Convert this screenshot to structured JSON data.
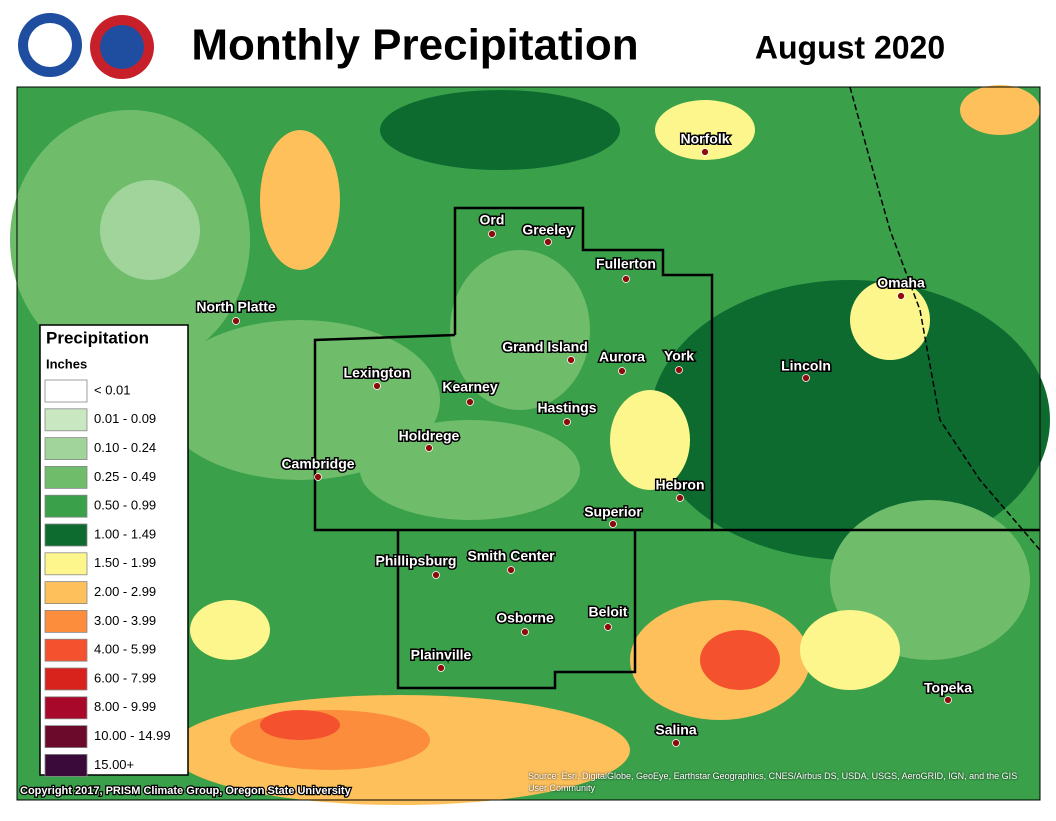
{
  "header": {
    "title": "Monthly Precipitation",
    "date": "August 2020"
  },
  "legend": {
    "title": "Precipitation",
    "unit": "Inches",
    "items": [
      {
        "label": "< 0.01",
        "color": "#ffffff"
      },
      {
        "label": "0.01 - 0.09",
        "color": "#c9e8c2"
      },
      {
        "label": "0.10 - 0.24",
        "color": "#a0d49a"
      },
      {
        "label": "0.25 - 0.49",
        "color": "#6fbd6b"
      },
      {
        "label": "0.50 - 0.99",
        "color": "#3aa04a"
      },
      {
        "label": "1.00 - 1.49",
        "color": "#0d6b30"
      },
      {
        "label": "1.50 - 1.99",
        "color": "#fdf68c"
      },
      {
        "label": "2.00 - 2.99",
        "color": "#fdc05a"
      },
      {
        "label": "3.00 - 3.99",
        "color": "#fb8d3c"
      },
      {
        "label": "4.00 - 5.99",
        "color": "#f4522e"
      },
      {
        "label": "6.00 - 7.99",
        "color": "#d8221c"
      },
      {
        "label": "8.00 - 9.99",
        "color": "#a8082a"
      },
      {
        "label": "10.00 - 14.99",
        "color": "#6b0a2a"
      },
      {
        "label": "15.00+",
        "color": "#3a0a3a"
      }
    ]
  },
  "cities": [
    {
      "name": "Norfolk"
    },
    {
      "name": "Ord"
    },
    {
      "name": "Greeley"
    },
    {
      "name": "Fullerton"
    },
    {
      "name": "Omaha"
    },
    {
      "name": "North Platte"
    },
    {
      "name": "Grand Island"
    },
    {
      "name": "Aurora"
    },
    {
      "name": "York"
    },
    {
      "name": "Lincoln"
    },
    {
      "name": "Lexington"
    },
    {
      "name": "Kearney"
    },
    {
      "name": "Hastings"
    },
    {
      "name": "Holdrege"
    },
    {
      "name": "Cambridge"
    },
    {
      "name": "Hebron"
    },
    {
      "name": "Superior"
    },
    {
      "name": "Phillipsburg"
    },
    {
      "name": "Smith Center"
    },
    {
      "name": "Osborne"
    },
    {
      "name": "Beloit"
    },
    {
      "name": "Plainville"
    },
    {
      "name": "Topeka"
    },
    {
      "name": "Salina"
    }
  ],
  "credits": {
    "copyright": "Copyright 2017, PRISM Climate Group, Oregon State University",
    "source": "Source: Esri, DigitalGlobe, GeoEye, Earthstar Geographics, CNES/Airbus DS, USDA, USGS, AeroGRID, IGN, and the GIS User Community"
  }
}
